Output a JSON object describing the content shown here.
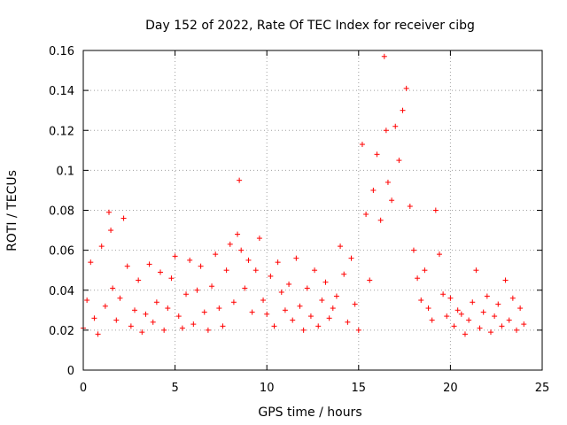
{
  "chart_data": {
    "type": "scatter",
    "title": "Day 152 of 2022, Rate Of TEC Index for receiver cibg",
    "xlabel": "GPS time / hours",
    "ylabel": "ROTI / TECUs",
    "xlim": [
      0,
      25
    ],
    "ylim": [
      0,
      0.16
    ],
    "xticks": [
      0,
      5,
      10,
      15,
      20,
      25
    ],
    "xtick_labels": [
      "0",
      "5",
      "10",
      "15",
      "20",
      "25"
    ],
    "yticks": [
      0,
      0.02,
      0.04,
      0.06,
      0.08,
      0.1,
      0.12,
      0.14,
      0.16
    ],
    "ytick_labels": [
      "0",
      "0.02",
      "0.04",
      "0.06",
      "0.08",
      "0.1",
      "0.12",
      "0.14",
      "0.16"
    ],
    "grid": true,
    "marker": "+",
    "color": "#ff0000",
    "series": [
      {
        "name": "ROTI",
        "x": [
          0.0,
          0.2,
          0.4,
          0.6,
          0.8,
          1.0,
          1.2,
          1.4,
          1.5,
          1.6,
          1.8,
          2.0,
          2.2,
          2.4,
          2.6,
          2.8,
          3.0,
          3.2,
          3.4,
          3.6,
          3.8,
          4.0,
          4.2,
          4.4,
          4.6,
          4.8,
          5.0,
          5.2,
          5.4,
          5.6,
          5.8,
          6.0,
          6.2,
          6.4,
          6.6,
          6.8,
          7.0,
          7.2,
          7.4,
          7.6,
          7.8,
          8.0,
          8.2,
          8.4,
          8.5,
          8.6,
          8.8,
          9.0,
          9.2,
          9.4,
          9.6,
          9.8,
          10.0,
          10.2,
          10.4,
          10.6,
          10.8,
          11.0,
          11.2,
          11.4,
          11.6,
          11.8,
          12.0,
          12.2,
          12.4,
          12.6,
          12.8,
          13.0,
          13.2,
          13.4,
          13.6,
          13.8,
          14.0,
          14.2,
          14.4,
          14.6,
          14.8,
          15.0,
          15.2,
          15.4,
          15.6,
          15.8,
          16.0,
          16.2,
          16.4,
          16.5,
          16.6,
          16.8,
          17.0,
          17.2,
          17.4,
          17.6,
          17.8,
          18.0,
          18.2,
          18.4,
          18.6,
          18.8,
          19.0,
          19.2,
          19.4,
          19.6,
          19.8,
          20.0,
          20.2,
          20.4,
          20.6,
          20.8,
          21.0,
          21.2,
          21.4,
          21.6,
          21.8,
          22.0,
          22.2,
          22.4,
          22.6,
          22.8,
          23.0,
          23.2,
          23.4,
          23.6,
          23.8,
          24.0
        ],
        "y": [
          0.021,
          0.035,
          0.054,
          0.026,
          0.018,
          0.062,
          0.032,
          0.079,
          0.07,
          0.041,
          0.025,
          0.036,
          0.076,
          0.052,
          0.022,
          0.03,
          0.045,
          0.019,
          0.028,
          0.053,
          0.024,
          0.034,
          0.049,
          0.02,
          0.031,
          0.046,
          0.057,
          0.027,
          0.021,
          0.038,
          0.055,
          0.023,
          0.04,
          0.052,
          0.029,
          0.02,
          0.042,
          0.058,
          0.031,
          0.022,
          0.05,
          0.063,
          0.034,
          0.068,
          0.095,
          0.06,
          0.041,
          0.055,
          0.029,
          0.05,
          0.066,
          0.035,
          0.028,
          0.047,
          0.022,
          0.054,
          0.039,
          0.03,
          0.043,
          0.025,
          0.056,
          0.032,
          0.02,
          0.041,
          0.027,
          0.05,
          0.022,
          0.035,
          0.044,
          0.026,
          0.031,
          0.037,
          0.062,
          0.048,
          0.024,
          0.056,
          0.033,
          0.02,
          0.113,
          0.078,
          0.045,
          0.09,
          0.108,
          0.075,
          0.157,
          0.12,
          0.094,
          0.085,
          0.122,
          0.105,
          0.13,
          0.141,
          0.082,
          0.06,
          0.046,
          0.035,
          0.05,
          0.031,
          0.025,
          0.08,
          0.058,
          0.038,
          0.027,
          0.036,
          0.022,
          0.03,
          0.028,
          0.018,
          0.025,
          0.034,
          0.05,
          0.021,
          0.029,
          0.037,
          0.019,
          0.027,
          0.033,
          0.022,
          0.045,
          0.025,
          0.036,
          0.02,
          0.031,
          0.023
        ]
      }
    ]
  }
}
